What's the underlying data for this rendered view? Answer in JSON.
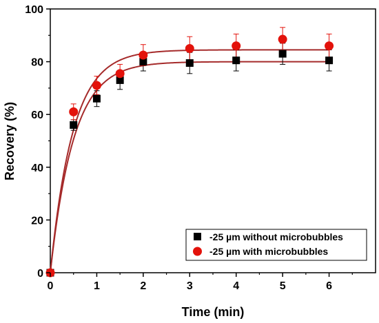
{
  "chart_data": {
    "type": "scatter",
    "title": "",
    "xlabel": "Time (min)",
    "ylabel": "Recovery (%)",
    "xlim": [
      0,
      7
    ],
    "ylim": [
      0,
      100
    ],
    "xticks": [
      0,
      1,
      2,
      3,
      4,
      5,
      6
    ],
    "yticks": [
      0,
      20,
      40,
      60,
      80,
      100
    ],
    "grid": false,
    "legend_position": "bottom-right",
    "series": [
      {
        "name": "-25 µm without microbubbles",
        "marker": "square",
        "color": "#000000",
        "x": [
          0,
          0.5,
          1,
          1.5,
          2,
          3,
          4,
          5,
          6
        ],
        "y": [
          0,
          56,
          66,
          73,
          80,
          79.5,
          80.5,
          83,
          80.5
        ],
        "error": [
          0,
          2,
          3,
          3.5,
          3.5,
          4,
          4,
          4,
          4
        ],
        "fit": {
          "type": "first-order",
          "R": 80.0,
          "k": 2.0,
          "color": "#a52a2a"
        }
      },
      {
        "name": "-25 µm with microbubbles",
        "marker": "circle",
        "color": "#e3120b",
        "x": [
          0,
          0.5,
          1,
          1.5,
          2,
          3,
          4,
          5,
          6
        ],
        "y": [
          0,
          61,
          71,
          75.5,
          82.5,
          85,
          86,
          88.5,
          86
        ],
        "error": [
          0,
          3,
          3.5,
          3.5,
          4,
          4.5,
          4.5,
          4.5,
          4.5
        ],
        "fit": {
          "type": "first-order",
          "R": 84.5,
          "k": 2.05,
          "color": "#a52a2a"
        }
      }
    ]
  }
}
